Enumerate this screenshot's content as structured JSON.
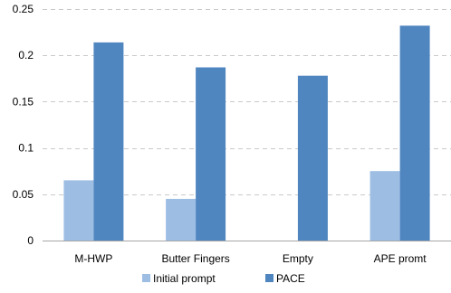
{
  "chart_data": {
    "type": "bar",
    "title": "",
    "xlabel": "",
    "ylabel": "",
    "categories": [
      "M-HWP",
      "Butter Fingers",
      "Empty",
      "APE promt"
    ],
    "series": [
      {
        "name": "Initial prompt",
        "color": "#9dbde3",
        "values": [
          0.065,
          0.045,
          0.0,
          0.075
        ]
      },
      {
        "name": "PACE",
        "color": "#4f86c0",
        "values": [
          0.214,
          0.187,
          0.178,
          0.232
        ]
      }
    ],
    "ylim": [
      0,
      0.25
    ],
    "yticks": [
      0,
      0.05,
      0.1,
      0.15,
      0.2,
      0.25
    ],
    "ytick_labels": [
      "0",
      "0.05",
      "0.1",
      "0.15",
      "0.2",
      "0.25"
    ],
    "grid": true,
    "legend_position": "bottom"
  }
}
